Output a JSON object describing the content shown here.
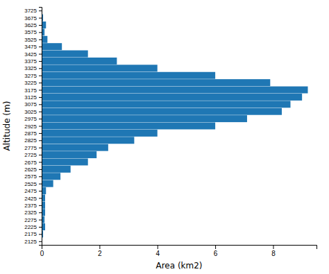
{
  "chart_data": {
    "type": "bar",
    "orientation": "horizontal",
    "x": [
      3725,
      3675,
      3625,
      3575,
      3525,
      3475,
      3425,
      3375,
      3325,
      3275,
      3225,
      3175,
      3125,
      3075,
      3025,
      2975,
      2925,
      2875,
      2825,
      2775,
      2725,
      2675,
      2625,
      2575,
      2525,
      2475,
      2425,
      2375,
      2325,
      2275,
      2225,
      2175,
      2125
    ],
    "values": [
      0.0,
      0.05,
      0.15,
      0.1,
      0.2,
      0.7,
      1.6,
      2.6,
      4.0,
      6.0,
      7.9,
      9.2,
      9.0,
      8.6,
      8.3,
      7.1,
      6.0,
      4.0,
      3.2,
      2.3,
      1.9,
      1.6,
      1.0,
      0.65,
      0.4,
      0.15,
      0.12,
      0.12,
      0.12,
      0.1,
      0.12,
      0.05,
      0.0
    ],
    "color": "#1f77b4",
    "xlabel": "Area (km2)",
    "ylabel": "Altitude (m)",
    "xlim": [
      0,
      9.5
    ],
    "xticks": [
      0,
      2,
      4,
      6,
      8
    ],
    "ylim": [
      2100,
      3750
    ],
    "yticks": [
      3725,
      3675,
      3625,
      3575,
      3525,
      3475,
      3425,
      3375,
      3325,
      3275,
      3225,
      3175,
      3125,
      3075,
      3025,
      2975,
      2925,
      2875,
      2825,
      2775,
      2725,
      2675,
      2625,
      2575,
      2525,
      2475,
      2425,
      2375,
      2325,
      2275,
      2225,
      2175,
      2125
    ],
    "grid": false
  }
}
